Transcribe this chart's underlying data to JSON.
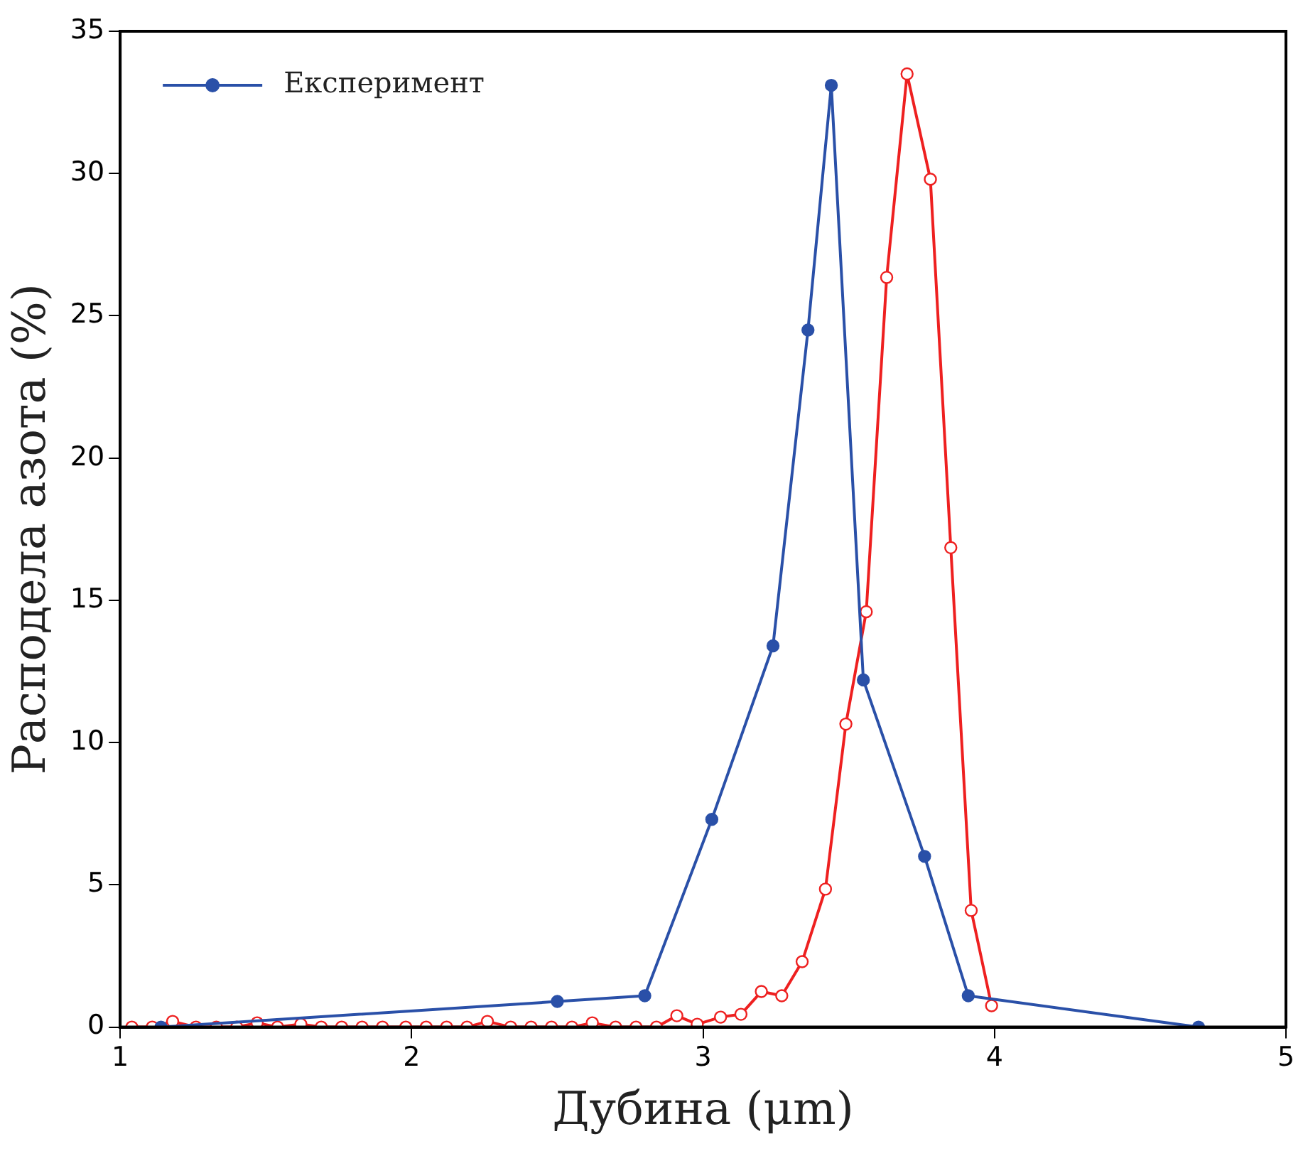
{
  "chart_data": {
    "type": "line",
    "xlabel": "Дубина (μm)",
    "ylabel": "Расподела азота (%)",
    "xlim": [
      1,
      5
    ],
    "xticks": [
      1,
      2,
      3,
      4,
      5
    ],
    "ylim": [
      0,
      35
    ],
    "yticks": [
      0,
      5,
      10,
      15,
      20,
      25,
      30,
      35
    ],
    "grid": false,
    "legend": "top left",
    "marker": "circle",
    "line_style": "solid",
    "series": [
      {
        "name": "Експеримент",
        "color": "#2a50a8",
        "x": [
          1.14,
          2.5,
          2.8,
          3.03,
          3.24,
          3.36,
          3.44,
          3.55,
          3.76,
          3.91,
          4.7
        ],
        "values": [
          0,
          0.9,
          1.1,
          7.3,
          13.4,
          24.5,
          33.1,
          12.2,
          6.0,
          1.1,
          0
        ]
      },
      {
        "color": "#ee2020",
        "x": [
          1.04,
          1.11,
          1.18,
          1.26,
          1.33,
          1.4,
          1.47,
          1.54,
          1.62,
          1.69,
          1.76,
          1.83,
          1.9,
          1.98,
          2.05,
          2.12,
          2.19,
          2.26,
          2.34,
          2.41,
          2.48,
          2.55,
          2.62,
          2.7,
          2.77,
          2.84,
          2.91,
          2.98,
          3.06,
          3.13,
          3.2,
          3.27,
          3.34,
          3.42,
          3.49,
          3.56,
          3.63,
          3.7,
          3.78,
          3.85,
          3.92,
          3.99
        ],
        "values": [
          0,
          0,
          0.2,
          0,
          0,
          0,
          0.15,
          0,
          0.1,
          0,
          0,
          0,
          0,
          0,
          0,
          0,
          0,
          0.2,
          0,
          0,
          0,
          0,
          0.15,
          0,
          0,
          0,
          0.4,
          0.1,
          0.35,
          0.45,
          1.25,
          1.1,
          2.3,
          4.85,
          10.65,
          14.6,
          26.35,
          33.5,
          29.8,
          16.85,
          4.1,
          0.75
        ]
      }
    ]
  }
}
